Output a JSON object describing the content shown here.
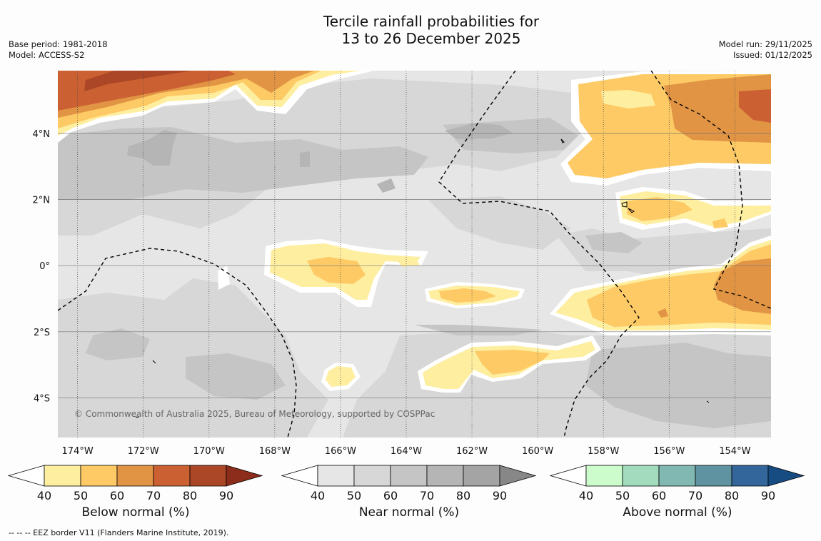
{
  "title_line1": "Tercile rainfall probabilities for",
  "title_line2": "13 to 26 December 2025",
  "meta_left": [
    "Base period: 1981-2018",
    "Model: ACCESS-S2"
  ],
  "meta_right": [
    "Model run: 29/11/2025",
    "Issued: 01/12/2025"
  ],
  "copyright": "© Commonwealth of Australia 2025, Bureau of Meteorology, supported by COSPPac",
  "footer": "--  --  -- EEZ border V11 (Flanders Marine Institute, 2019).",
  "map": {
    "lon_range": [
      -174.6,
      -152.9
    ],
    "lat_range": [
      -5.2,
      5.9
    ],
    "lon_ticks": [
      {
        "value": -174,
        "label": "174°W"
      },
      {
        "value": -172,
        "label": "172°W"
      },
      {
        "value": -170,
        "label": "170°W"
      },
      {
        "value": -168,
        "label": "168°W"
      },
      {
        "value": -166,
        "label": "166°W"
      },
      {
        "value": -164,
        "label": "164°W"
      },
      {
        "value": -162,
        "label": "162°W"
      },
      {
        "value": -160,
        "label": "160°W"
      },
      {
        "value": -158,
        "label": "158°W"
      },
      {
        "value": -156,
        "label": "156°W"
      },
      {
        "value": -154,
        "label": "154°W"
      }
    ],
    "lat_ticks": [
      {
        "value": 4,
        "label": "4°N"
      },
      {
        "value": 2,
        "label": "2°N"
      },
      {
        "value": 0,
        "label": "0°"
      },
      {
        "value": -2,
        "label": "2°S"
      },
      {
        "value": -4,
        "label": "4°S"
      }
    ]
  },
  "colorbars": [
    {
      "name": "below",
      "label": "Below normal (%)",
      "colors": [
        "#feeea0",
        "#fdca65",
        "#e19444",
        "#cb6132",
        "#ab4626",
        "#8c2c1a"
      ]
    },
    {
      "name": "near",
      "label": "Near normal (%)",
      "colors": [
        "#e6e6e6",
        "#d7d7d7",
        "#c5c5c5",
        "#b5b5b5",
        "#a4a4a4",
        "#878787"
      ]
    },
    {
      "name": "above",
      "label": "Above normal (%)",
      "colors": [
        "#ccfccc",
        "#a2dbbd",
        "#81b9b2",
        "#5f93a1",
        "#33669a",
        "#174c83"
      ]
    }
  ],
  "colorbar_ticks": [
    "40",
    "50",
    "60",
    "70",
    "80",
    "90"
  ],
  "palette": {
    "near_base": "#e6e6e6",
    "near_50": "#d7d7d7",
    "near_60": "#c5c5c5",
    "near_70": "#b5b5b5",
    "below_40": "#feeea0",
    "below_50": "#fdca65",
    "below_60": "#e19444",
    "below_70": "#cb6132",
    "below_80": "#ab4626"
  }
}
